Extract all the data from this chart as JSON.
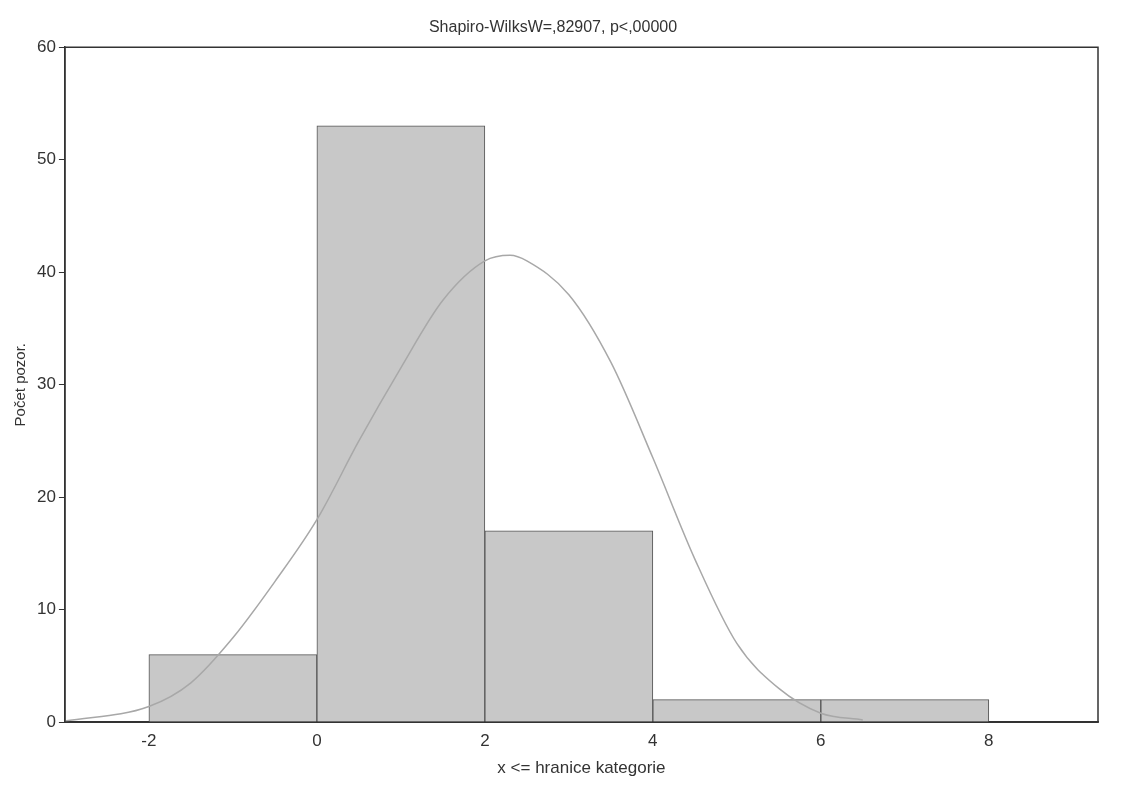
{
  "chart_data": {
    "type": "histogram",
    "title": "Shapiro-WilksW=,82907, p<,00000",
    "xlabel": "x <= hranice kategorie",
    "ylabel": "Počet pozor.",
    "bins": [
      -2,
      0,
      2,
      4,
      6,
      8
    ],
    "values": [
      6,
      53,
      17,
      2,
      2
    ],
    "color": "#c8c8c8",
    "series": [
      {
        "type": "line",
        "color": "#a8a8a8",
        "x": [
          -3,
          -2,
          -1.5,
          -1,
          -0.5,
          0,
          0.5,
          1,
          1.5,
          2,
          2.3,
          2.5,
          3,
          3.5,
          4,
          4.5,
          5,
          5.5,
          6,
          6.5
        ],
        "values": [
          0.1,
          1.4,
          3.5,
          7.5,
          12.5,
          18,
          25,
          31.5,
          37.5,
          41,
          41.5,
          41,
          38,
          32,
          23.5,
          14.5,
          7,
          3,
          0.8,
          0.2
        ]
      }
    ],
    "xlim": [
      -3,
      9.3
    ],
    "xticks": [
      -2,
      0,
      2,
      4,
      6,
      8
    ],
    "ylim": [
      0,
      60
    ],
    "yticks": [
      0,
      10,
      20,
      30,
      40,
      50,
      60
    ],
    "grid": false,
    "legend": false
  }
}
